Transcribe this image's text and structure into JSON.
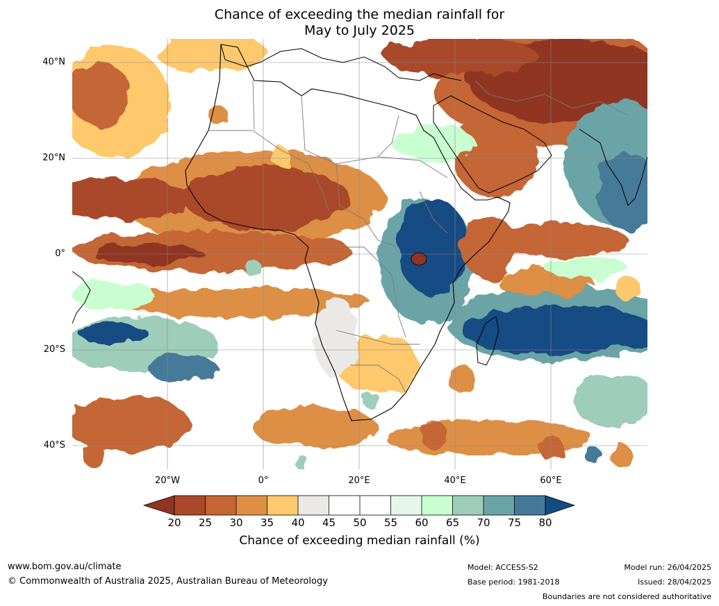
{
  "title": {
    "line1": "Chance of exceeding the median rainfall for",
    "line2": "May to July 2025"
  },
  "map": {
    "lat_labels": [
      "40°N",
      "20°N",
      "0°",
      "20°S",
      "40°S"
    ],
    "lon_labels": [
      "20°W",
      "0°",
      "20°E",
      "40°E",
      "60°E"
    ],
    "colors": {
      "c15": "#8f3522",
      "c20": "#a9492a",
      "c25": "#c46634",
      "c30": "#dd8f45",
      "c35": "#fdc96c",
      "c40": "#ebe9e6",
      "c45": "#ffffff",
      "c50": "#ffffff",
      "c55": "#e6f6ea",
      "c60": "#c9ffd0",
      "c65": "#9ecdb9",
      "c70": "#6aa4a7",
      "c75": "#447a98",
      "c80": "#134b83"
    }
  },
  "colorbar": {
    "ticks": [
      "20",
      "25",
      "30",
      "35",
      "40",
      "45",
      "50",
      "55",
      "60",
      "65",
      "70",
      "75",
      "80"
    ],
    "label": "Chance of exceeding median rainfall (%)"
  },
  "footer": {
    "website": "www.bom.gov.au/climate",
    "copyright": "© Commonwealth of Australia 2025, Australian Bureau of Meteorology",
    "model": "Model: ACCESS-S2",
    "base_period": "Base period: 1981-2018",
    "model_run": "Model run: 26/04/2025",
    "issued": "Issued: 28/04/2025",
    "disclaimer": "Boundaries are not considered authoritative"
  }
}
